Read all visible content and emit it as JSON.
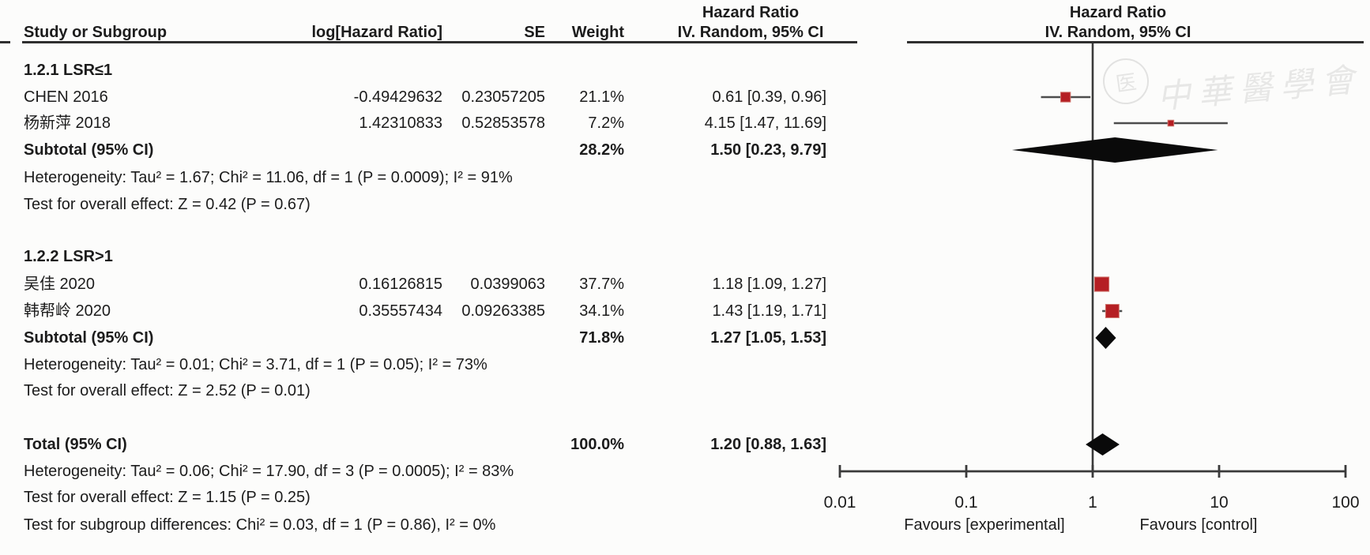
{
  "figure": {
    "kind": "forest-plot-meta-analysis",
    "effect_label": "Hazard Ratio",
    "model_label": "IV. Random, 95% CI"
  },
  "header": {
    "study": "Study or Subgroup",
    "loghr": "log[Hazard Ratio]",
    "se": "SE",
    "weight": "Weight",
    "effect_line1": "Hazard Ratio",
    "effect_line2": "IV. Random, 95% CI",
    "plot_line1": "Hazard Ratio",
    "plot_line2": "IV. Random, 95% CI"
  },
  "rows": [
    {
      "type": "group",
      "label": "1.2.1 LSR≤1"
    },
    {
      "type": "study",
      "label": "CHEN 2016",
      "loghr": "-0.49429632",
      "se": "0.23057205",
      "weight": "21.1%",
      "estimate": "0.61 [0.39, 0.96]"
    },
    {
      "type": "study",
      "label": "杨新萍 2018",
      "loghr": "1.42310833",
      "se": "0.52853578",
      "weight": "7.2%",
      "estimate": "4.15 [1.47, 11.69]"
    },
    {
      "type": "subtotal",
      "label": "Subtotal (95% CI)",
      "loghr": "",
      "se": "",
      "weight": "28.2%",
      "estimate": "1.50 [0.23, 9.79]"
    },
    {
      "type": "note",
      "label": "Heterogeneity: Tau² = 1.67; Chi² = 11.06, df = 1 (P = 0.0009); I² = 91%"
    },
    {
      "type": "note",
      "label": "Test for overall effect: Z = 0.42 (P = 0.67)"
    },
    {
      "type": "group",
      "label": "1.2.2 LSR>1"
    },
    {
      "type": "study",
      "label": "吴佳 2020",
      "loghr": "0.16126815",
      "se": "0.0399063",
      "weight": "37.7%",
      "estimate": "1.18 [1.09, 1.27]"
    },
    {
      "type": "study",
      "label": "韩帮岭 2020",
      "loghr": "0.35557434",
      "se": "0.09263385",
      "weight": "34.1%",
      "estimate": "1.43 [1.19, 1.71]"
    },
    {
      "type": "subtotal",
      "label": "Subtotal (95% CI)",
      "loghr": "",
      "se": "",
      "weight": "71.8%",
      "estimate": "1.27 [1.05, 1.53]"
    },
    {
      "type": "note",
      "label": "Heterogeneity: Tau² = 0.01; Chi² = 3.71, df = 1 (P = 0.05); I² = 73%"
    },
    {
      "type": "note",
      "label": "Test for overall effect: Z = 2.52 (P = 0.01)"
    },
    {
      "type": "total",
      "label": "Total (95% CI)",
      "loghr": "",
      "se": "",
      "weight": "100.0%",
      "estimate": "1.20 [0.88, 1.63]"
    },
    {
      "type": "note",
      "label": "Heterogeneity: Tau² = 0.06; Chi² = 17.90, df = 3 (P = 0.0005); I² = 83%"
    },
    {
      "type": "note",
      "label": "Test for overall effect: Z = 1.15 (P = 0.25)"
    },
    {
      "type": "note",
      "label": "Test for subgroup differences: Chi² = 0.03, df = 1 (P = 0.86), I² = 0%"
    }
  ],
  "axis": {
    "tick_labels": [
      "0.01",
      "0.1",
      "1",
      "10",
      "100"
    ],
    "favours_left": "Favours [experimental]",
    "favours_right": "Favours [control]"
  },
  "watermark": {
    "text": "中華醫學會",
    "seal_glyph": "医"
  },
  "colors": {
    "marker_red": "#b51f24",
    "marker_red_rim": "#d0776f",
    "diamond_black": "#0a0a0a",
    "line_dark": "#3a3a3a",
    "ci_line": "#4d4d4d",
    "text": "#1c1c1c"
  },
  "chart_data": {
    "type": "forest",
    "x_scale": "log10",
    "xlim": [
      0.01,
      100
    ],
    "x_ticks": [
      0.01,
      0.1,
      1,
      10,
      100
    ],
    "no_effect_line": 1,
    "effect_measure": "Hazard Ratio",
    "model": "IV, Random, 95% CI",
    "groups": [
      {
        "label": "1.2.1 LSR≤1",
        "studies": [
          {
            "name": "CHEN 2016",
            "log_hr": -0.49429632,
            "se": 0.23057205,
            "weight_pct": 21.1,
            "hr": 0.61,
            "ci": [
              0.39,
              0.96
            ]
          },
          {
            "name": "杨新萍 2018",
            "log_hr": 1.42310833,
            "se": 0.52853578,
            "weight_pct": 7.2,
            "hr": 4.15,
            "ci": [
              1.47,
              11.69
            ]
          }
        ],
        "subtotal": {
          "weight_pct": 28.2,
          "hr": 1.5,
          "ci": [
            0.23,
            9.79
          ]
        },
        "heterogeneity": "Tau² = 1.67; Chi² = 11.06, df = 1 (P = 0.0009); I² = 91%",
        "overall_effect": "Z = 0.42 (P = 0.67)"
      },
      {
        "label": "1.2.2 LSR>1",
        "studies": [
          {
            "name": "吴佳 2020",
            "log_hr": 0.16126815,
            "se": 0.0399063,
            "weight_pct": 37.7,
            "hr": 1.18,
            "ci": [
              1.09,
              1.27
            ]
          },
          {
            "name": "韩帮岭 2020",
            "log_hr": 0.35557434,
            "se": 0.09263385,
            "weight_pct": 34.1,
            "hr": 1.43,
            "ci": [
              1.19,
              1.71
            ]
          }
        ],
        "subtotal": {
          "weight_pct": 71.8,
          "hr": 1.27,
          "ci": [
            1.05,
            1.53
          ]
        },
        "heterogeneity": "Tau² = 0.01; Chi² = 3.71, df = 1 (P = 0.05); I² = 73%",
        "overall_effect": "Z = 2.52 (P = 0.01)"
      }
    ],
    "total": {
      "weight_pct": 100.0,
      "hr": 1.2,
      "ci": [
        0.88,
        1.63
      ]
    },
    "total_heterogeneity": "Tau² = 0.06; Chi² = 17.90, df = 3 (P = 0.0005); I² = 83%",
    "total_overall_effect": "Z = 1.15 (P = 0.25)",
    "subgroup_differences": "Chi² = 0.03, df = 1 (P = 0.86), I² = 0%",
    "favours": [
      "Favours [experimental]",
      "Favours [control]"
    ]
  }
}
